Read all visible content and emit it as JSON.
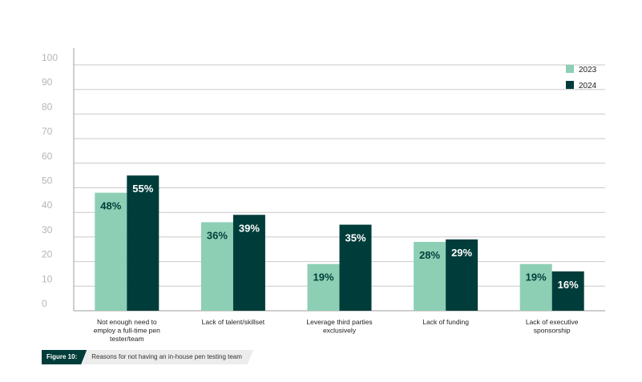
{
  "chart_data": {
    "type": "bar",
    "categories": [
      "Not enough need to employ a full-time pen tester/team",
      "Lack of talent/skillset",
      "Leverage third parties exclusively",
      "Lack of funding",
      "Lack of executive sponsorship"
    ],
    "category_lines": [
      [
        "Not enough need to",
        "employ a full-time pen",
        "tester/team"
      ],
      [
        "Lack of talent/skillset"
      ],
      [
        "Leverage third parties",
        "exclusively"
      ],
      [
        "Lack of funding"
      ],
      [
        "Lack of executive",
        "sponsorship"
      ]
    ],
    "series": [
      {
        "name": "2023",
        "values": [
          48,
          36,
          19,
          28,
          19
        ],
        "labels": [
          "48%",
          "36%",
          "19%",
          "28%",
          "19%"
        ],
        "color": "#8dcfb5"
      },
      {
        "name": "2024",
        "values": [
          55,
          39,
          35,
          29,
          16
        ],
        "labels": [
          "55%",
          "39%",
          "35%",
          "29%",
          "16%"
        ],
        "color": "#003d3a"
      }
    ],
    "ylim": [
      0,
      100
    ],
    "yticks": [
      "0",
      "10",
      "20",
      "30",
      "40",
      "50",
      "60",
      "70",
      "80",
      "90",
      "100"
    ],
    "grid": true,
    "legend": "top-right",
    "xlabel": "",
    "ylabel": ""
  },
  "figure": {
    "number": "Figure 10:",
    "caption": "Reasons for not having an in-house pen testing team"
  },
  "colors": {
    "grid": "#c9c9c9",
    "axis": "#9e9e9e",
    "tick_text": "#b5b5b5",
    "label_on_light": "#003d3a",
    "label_on_dark": "#ffffff"
  }
}
